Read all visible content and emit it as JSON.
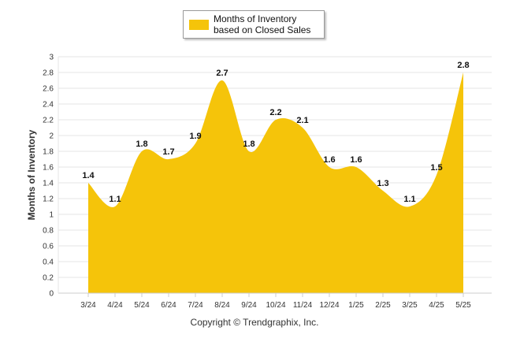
{
  "chart_data": {
    "type": "area",
    "title": "",
    "xlabel": "",
    "ylabel": "Months of Inventory",
    "categories": [
      "3/24",
      "4/24",
      "5/24",
      "6/24",
      "7/24",
      "8/24",
      "9/24",
      "10/24",
      "11/24",
      "12/24",
      "1/25",
      "2/25",
      "3/25",
      "4/25",
      "5/25"
    ],
    "series": [
      {
        "name": "Months of Inventory based on Closed Sales",
        "values": [
          1.4,
          1.1,
          1.8,
          1.7,
          1.9,
          2.7,
          1.8,
          2.2,
          2.1,
          1.6,
          1.6,
          1.3,
          1.1,
          1.5,
          2.8
        ],
        "color": "#F5C40A"
      }
    ],
    "ylim": [
      0,
      3
    ],
    "yticks": [
      "0",
      "0.2",
      "0.4",
      "0.6",
      "0.8",
      "1",
      "1.2",
      "1.4",
      "1.6",
      "1.8",
      "2",
      "2.2",
      "2.4",
      "2.6",
      "2.8",
      "3"
    ],
    "grid": true,
    "legend_position": "top-center"
  },
  "legend": {
    "label": "Months of Inventory based on Closed Sales"
  },
  "copyright": "Copyright © Trendgraphix, Inc.",
  "colors": {
    "area": "#F5C40A",
    "grid": "#e6e6e6",
    "axis": "#cccccc"
  }
}
